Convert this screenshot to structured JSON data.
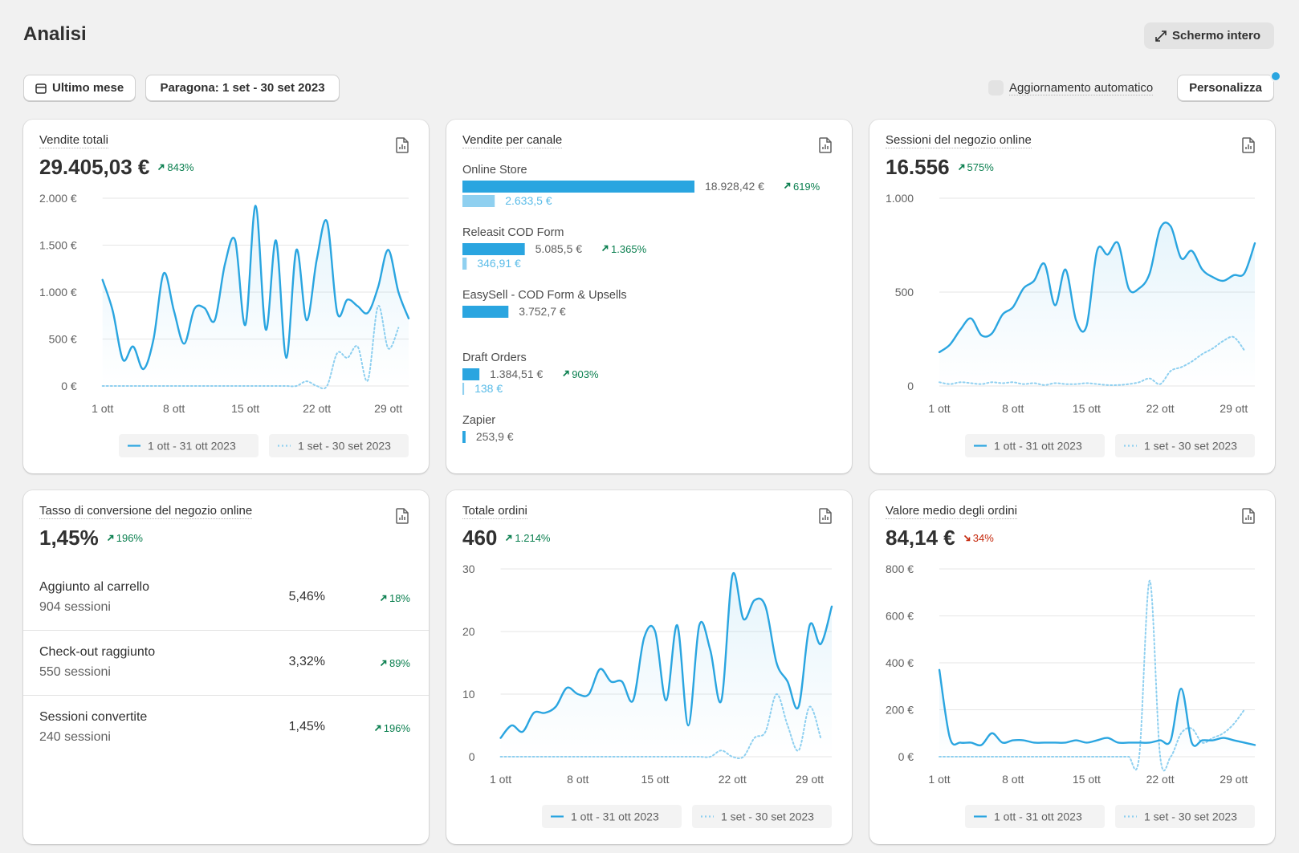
{
  "header": {
    "title": "Analisi",
    "fullscreen": "Schermo intero"
  },
  "toolbar": {
    "period": "Ultimo mese",
    "compare": "Paragona: 1 set - 30 set 2023",
    "auto_refresh": "Aggiornamento automatico",
    "customize": "Personalizza"
  },
  "cards": [
    {
      "title": "Vendite totali",
      "kpi": "29.405,03 €",
      "change": "843%",
      "trend": "up",
      "chart": {
        "type": "line",
        "categories": [
          "1 ott",
          null,
          null,
          null,
          null,
          null,
          null,
          "8 ott",
          null,
          null,
          null,
          null,
          null,
          null,
          "15 ott",
          null,
          null,
          null,
          null,
          null,
          null,
          "22 ott",
          null,
          null,
          null,
          null,
          null,
          null,
          "29 ott",
          null,
          null
        ],
        "series": [
          {
            "name": "1 ott - 31 ott 2023",
            "color": "#2aa5e0",
            "style": "solid",
            "values": [
              1130,
              800,
              280,
              420,
              180,
              500,
              1200,
              800,
              450,
              820,
              830,
              700,
              1300,
              1550,
              650,
              1920,
              600,
              1550,
              300,
              1450,
              700,
              1350,
              1750,
              780,
              920,
              850,
              780,
              1050,
              1450,
              1000,
              720
            ]
          },
          {
            "name": "1 set - 30 set 2023",
            "color": "#8fd0f0",
            "style": "dotted",
            "values": [
              0,
              0,
              0,
              0,
              0,
              0,
              0,
              0,
              0,
              0,
              0,
              0,
              0,
              0,
              0,
              0,
              0,
              0,
              0,
              0,
              50,
              0,
              0,
              350,
              300,
              420,
              60,
              850,
              400,
              620,
              null
            ]
          }
        ],
        "ylim": [
          0,
          2000
        ],
        "yticks": [
          {
            "value": 0,
            "label": "0 €"
          },
          {
            "value": 500,
            "label": "500 €"
          },
          {
            "value": 1000,
            "label": "1.000 €"
          },
          {
            "value": 1500,
            "label": "1.500 €"
          },
          {
            "value": 2000,
            "label": "2.000 €"
          }
        ],
        "grid": true
      }
    },
    {
      "title": "Vendite per canale",
      "chart": {
        "type": "channels",
        "color": "#2aa5e0",
        "previous_color": "#8fd0f0",
        "channels": [
          {
            "name": "Online Store",
            "value": 18928.42,
            "value_label": "18.928,42 €",
            "previous": 2633.5,
            "previous_label": "2.633,5 €",
            "change": "619%",
            "trend": "up"
          },
          {
            "name": "Releasit COD Form",
            "value": 5085.5,
            "value_label": "5.085,5 €",
            "previous": 346.91,
            "previous_label": "346,91 €",
            "change": "1.365%",
            "trend": "up"
          },
          {
            "name": "EasySell - COD Form & Upsells",
            "value": 3752.7,
            "value_label": "3.752,7 €"
          },
          {
            "name": "Draft Orders",
            "value": 1384.51,
            "value_label": "1.384,51 €",
            "previous": 138,
            "previous_label": "138 €",
            "change": "903%",
            "trend": "up"
          },
          {
            "name": "Zapier",
            "value": 253.9,
            "value_label": "253,9 €"
          }
        ]
      }
    },
    {
      "title": "Sessioni del negozio online",
      "kpi": "16.556",
      "change": "575%",
      "trend": "up",
      "chart": {
        "type": "line",
        "categories": [
          "1 ott",
          null,
          null,
          null,
          null,
          null,
          null,
          "8 ott",
          null,
          null,
          null,
          null,
          null,
          null,
          "15 ott",
          null,
          null,
          null,
          null,
          null,
          null,
          "22 ott",
          null,
          null,
          null,
          null,
          null,
          null,
          "29 ott",
          null,
          null
        ],
        "series": [
          {
            "name": "1 ott - 31 ott 2023",
            "color": "#2aa5e0",
            "style": "solid",
            "values": [
              180,
              220,
              300,
              360,
              270,
              280,
              380,
              420,
              520,
              560,
              650,
              430,
              620,
              350,
              320,
              720,
              700,
              760,
              520,
              520,
              600,
              840,
              850,
              680,
              720,
              620,
              580,
              560,
              590,
              600,
              760
            ]
          },
          {
            "name": "1 set - 30 set 2023",
            "color": "#8fd0f0",
            "style": "dotted",
            "values": [
              20,
              10,
              20,
              15,
              10,
              20,
              15,
              20,
              10,
              15,
              5,
              15,
              10,
              10,
              15,
              10,
              5,
              5,
              10,
              20,
              40,
              10,
              80,
              100,
              130,
              170,
              200,
              240,
              260,
              190,
              null
            ]
          }
        ],
        "ylim": [
          0,
          1000
        ],
        "yticks": [
          0,
          500,
          {
            "value": 1000,
            "label": "1.000"
          }
        ],
        "grid": true
      }
    },
    {
      "title": "Tasso di conversione del negozio online",
      "kpi": "1,45%",
      "change": "196%",
      "trend": "up",
      "rows": [
        {
          "label": "Aggiunto al carrello",
          "sessions": "904 sessioni",
          "value": "5,46%",
          "change": "18%",
          "trend": "up"
        },
        {
          "label": "Check-out raggiunto",
          "sessions": "550 sessioni",
          "value": "3,32%",
          "change": "89%",
          "trend": "up"
        },
        {
          "label": "Sessioni convertite",
          "sessions": "240 sessioni",
          "value": "1,45%",
          "change": "196%",
          "trend": "up"
        }
      ]
    },
    {
      "title": "Totale ordini",
      "kpi": "460",
      "change": "1.214%",
      "trend": "up",
      "chart": {
        "type": "line",
        "categories": [
          "1 ott",
          null,
          null,
          null,
          null,
          null,
          null,
          "8 ott",
          null,
          null,
          null,
          null,
          null,
          null,
          "15 ott",
          null,
          null,
          null,
          null,
          null,
          null,
          "22 ott",
          null,
          null,
          null,
          null,
          null,
          null,
          "29 ott",
          null,
          null
        ],
        "series": [
          {
            "name": "1 ott - 31 ott 2023",
            "color": "#2aa5e0",
            "style": "solid",
            "values": [
              3,
              5,
              4,
              7,
              7,
              8,
              11,
              10,
              10,
              14,
              12,
              12,
              9,
              19,
              20,
              9,
              21,
              5,
              21,
              17,
              9,
              29,
              22,
              25,
              24,
              15,
              12,
              8,
              21,
              18,
              24
            ]
          },
          {
            "name": "1 set - 30 set 2023",
            "color": "#8fd0f0",
            "style": "dotted",
            "values": [
              0,
              0,
              0,
              0,
              0,
              0,
              0,
              0,
              0,
              0,
              0,
              0,
              0,
              0,
              0,
              0,
              0,
              0,
              0,
              0,
              1,
              0,
              0,
              3,
              4,
              10,
              5,
              1,
              8,
              3,
              null
            ]
          }
        ],
        "ylim": [
          0,
          30
        ],
        "yticks": [
          0,
          10,
          20,
          30
        ],
        "grid": true
      }
    },
    {
      "title": "Valore medio degli ordini",
      "kpi": "84,14 €",
      "change": "34%",
      "trend": "down",
      "chart": {
        "type": "line",
        "categories": [
          "1 ott",
          null,
          null,
          null,
          null,
          null,
          null,
          "8 ott",
          null,
          null,
          null,
          null,
          null,
          null,
          "15 ott",
          null,
          null,
          null,
          null,
          null,
          null,
          "22 ott",
          null,
          null,
          null,
          null,
          null,
          null,
          "29 ott",
          null,
          null
        ],
        "series": [
          {
            "name": "1 ott - 31 ott 2023",
            "color": "#2aa5e0",
            "style": "solid",
            "values": [
              370,
              80,
              60,
              60,
              50,
              100,
              60,
              70,
              70,
              60,
              60,
              60,
              60,
              70,
              60,
              70,
              80,
              60,
              60,
              60,
              60,
              70,
              70,
              290,
              60,
              70,
              70,
              80,
              70,
              60,
              50
            ]
          },
          {
            "name": "1 set - 30 set 2023",
            "color": "#8fd0f0",
            "style": "dotted",
            "values": [
              0,
              0,
              0,
              0,
              0,
              0,
              0,
              0,
              0,
              0,
              0,
              0,
              0,
              0,
              0,
              0,
              0,
              0,
              0,
              0,
              750,
              0,
              0,
              100,
              120,
              60,
              80,
              100,
              140,
              200,
              null
            ]
          }
        ],
        "ylim": [
          0,
          800
        ],
        "yticks": [
          {
            "value": 0,
            "label": "0 €"
          },
          {
            "value": 200,
            "label": "200 €"
          },
          {
            "value": 400,
            "label": "400 €"
          },
          {
            "value": 600,
            "label": "600 €"
          },
          {
            "value": 800,
            "label": "800 €"
          }
        ],
        "grid": true
      }
    }
  ]
}
